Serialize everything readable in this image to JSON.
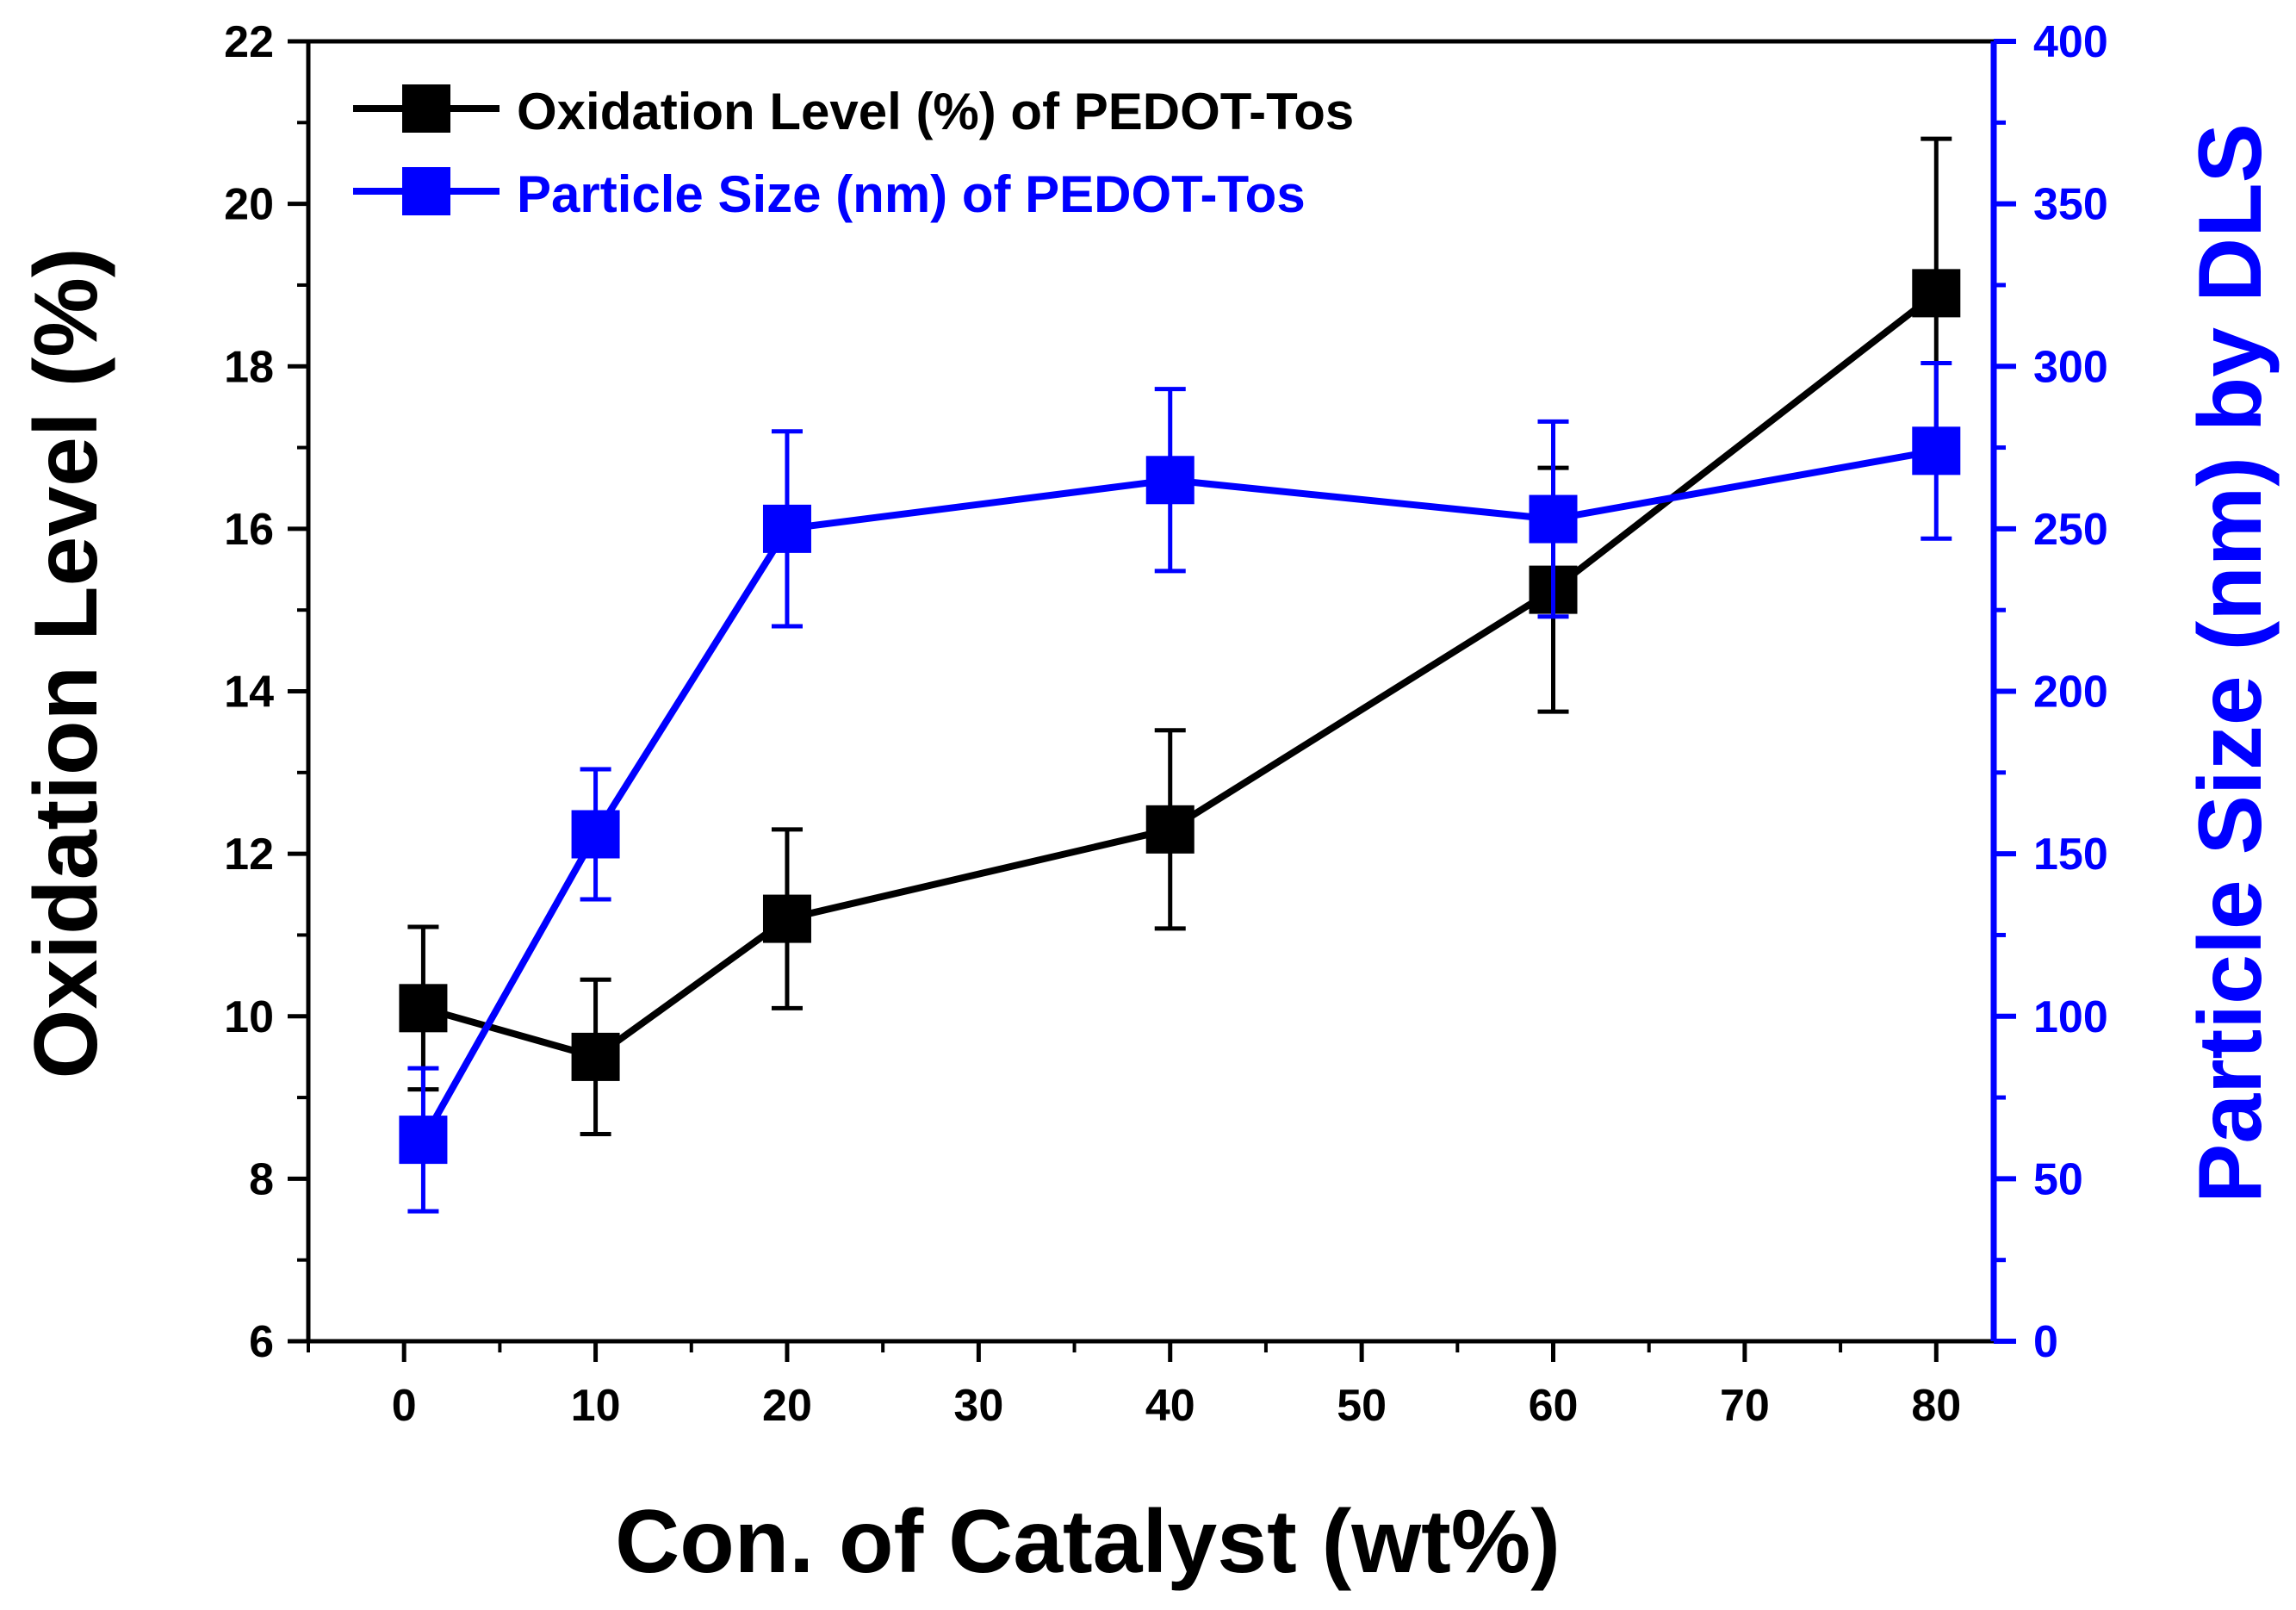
{
  "chart_data": {
    "type": "line",
    "xlabel": "Con. of Catalyst (wt%)",
    "ylabel_left": "Oxidation Level (%)",
    "ylabel_right": "Particle Size (nm) by DLS",
    "xlim": [
      -5,
      83
    ],
    "x_ticks": [
      0,
      10,
      20,
      30,
      40,
      50,
      60,
      70,
      80
    ],
    "ylim_left": [
      6,
      22
    ],
    "y_ticks_left": [
      6,
      8,
      10,
      12,
      14,
      16,
      18,
      20,
      22
    ],
    "ylim_right": [
      0,
      400
    ],
    "y_ticks_right": [
      0,
      50,
      100,
      150,
      200,
      250,
      300,
      350,
      400
    ],
    "legend_position": "top-left",
    "series": [
      {
        "name": "Oxidation Level (%) of PEDOT-Tos",
        "axis": "left",
        "color": "#000000",
        "x": [
          1,
          10,
          20,
          40,
          60,
          80
        ],
        "values": [
          10.1,
          9.5,
          11.2,
          12.3,
          15.25,
          18.9
        ],
        "error": [
          1.0,
          0.95,
          1.1,
          1.22,
          1.5,
          1.9
        ]
      },
      {
        "name": "Particle Size (nm) of PEDOT-Tos",
        "axis": "right",
        "color": "#0000ff",
        "x": [
          1,
          10,
          20,
          40,
          60,
          80
        ],
        "values": [
          62,
          156,
          250,
          265,
          253,
          274
        ],
        "error": [
          22,
          20,
          30,
          28,
          30,
          27
        ]
      }
    ]
  }
}
